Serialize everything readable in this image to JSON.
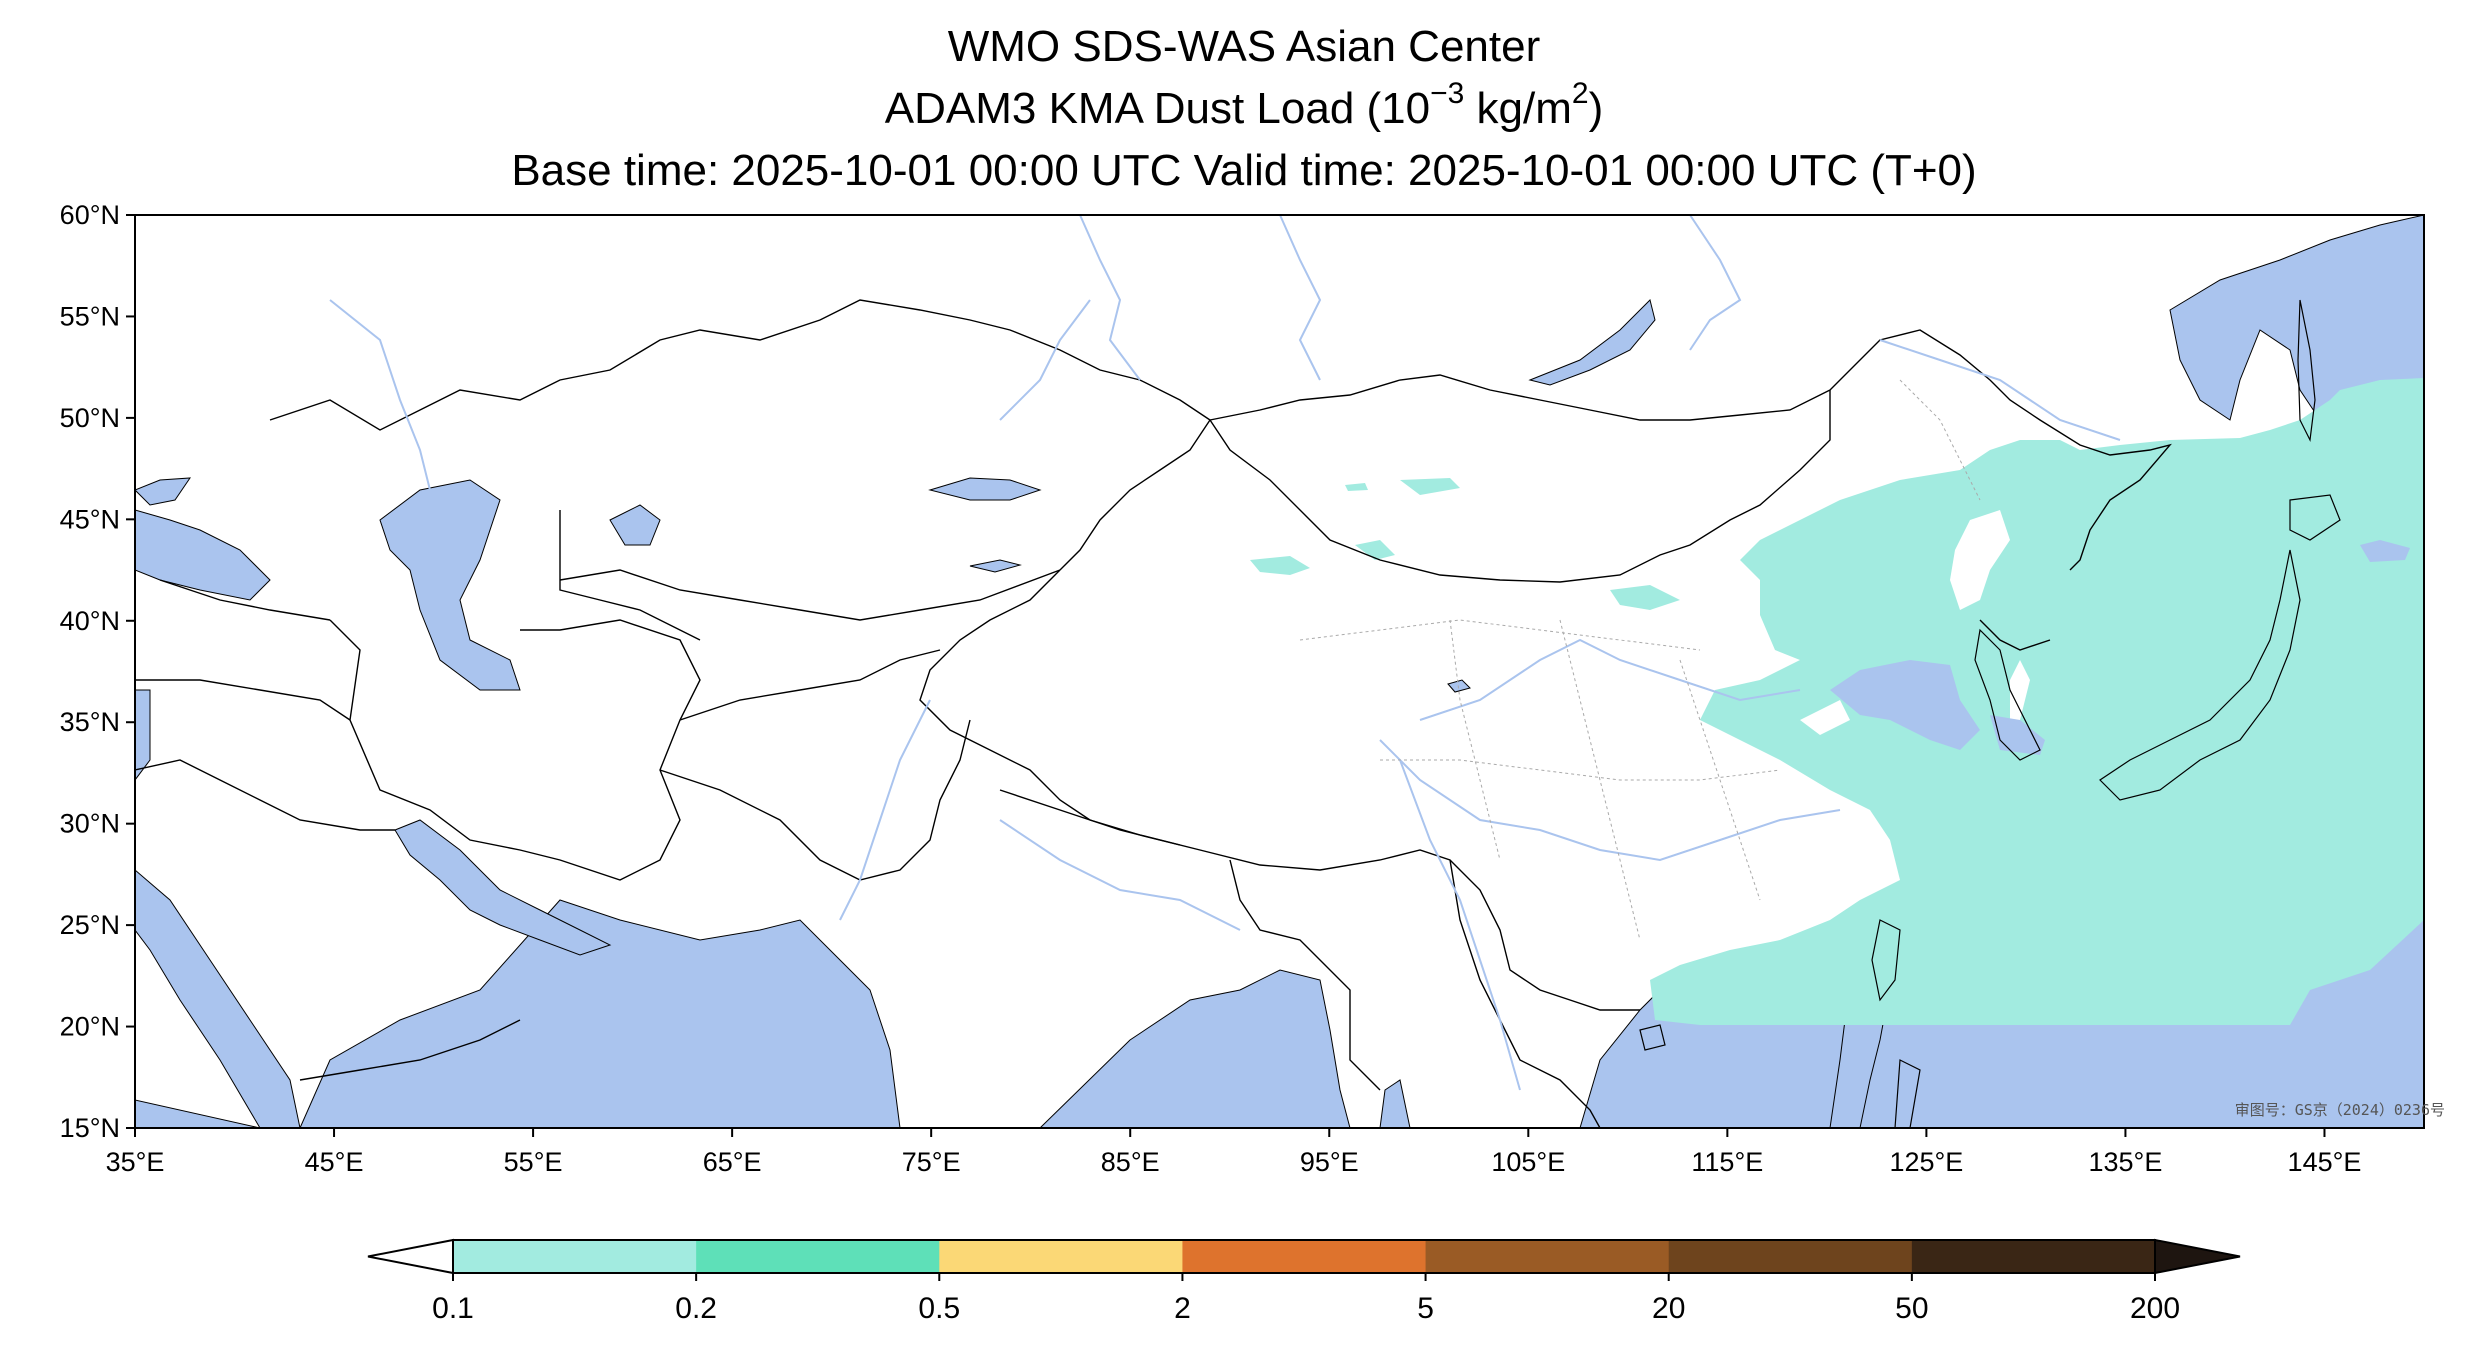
{
  "title": {
    "line1": "WMO SDS-WAS Asian Center",
    "line2_prefix": "ADAM3 KMA Dust Load (10",
    "line2_exp1": "−3",
    "line2_mid": " kg/m",
    "line2_exp2": "2",
    "line2_suffix": ")",
    "line3": "Base time: 2025-10-01 00:00 UTC Valid time: 2025-10-01 00:00 UTC (T+0)"
  },
  "map": {
    "lon_range": [
      35,
      150
    ],
    "lat_range": [
      15,
      60
    ],
    "x_ticks": [
      "35°E",
      "45°E",
      "55°E",
      "65°E",
      "75°E",
      "85°E",
      "95°E",
      "105°E",
      "115°E",
      "125°E",
      "135°E",
      "145°E"
    ],
    "y_ticks": [
      "15°N",
      "20°N",
      "25°N",
      "30°N",
      "35°N",
      "40°N",
      "45°N",
      "50°N",
      "55°N",
      "60°N"
    ],
    "watermark": "审图号：GS京（2024）0236号",
    "colors": {
      "ocean": "#aac4ee",
      "river": "#aac4ee",
      "land": "#ffffff",
      "border": "#000000",
      "dust_lowest": "#a2ebe0"
    }
  },
  "colorbar": {
    "labels": [
      "0.1",
      "0.2",
      "0.5",
      "2",
      "5",
      "20",
      "50",
      "200"
    ],
    "colors": [
      "#a2ebe0",
      "#5ee0b8",
      "#fbd876",
      "#de732d",
      "#9a5b25",
      "#6e441d",
      "#3a2615"
    ],
    "extend_low_color": "#ffffff",
    "extend_high_color": "#1e1510"
  }
}
